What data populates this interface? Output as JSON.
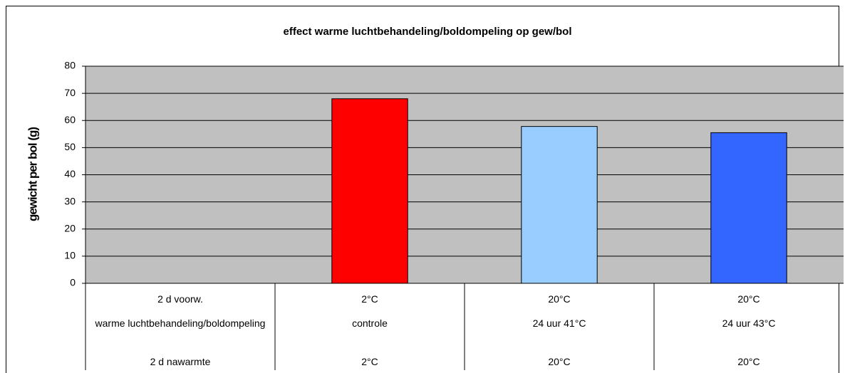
{
  "chart_data": {
    "type": "bar",
    "title": "effect warme luchtbehandeling/boldompeling op gew/bol",
    "y_label": "gewicht per bol (g)",
    "categories": [
      [
        "2 d voorw.",
        "warme luchtbehandeling/boldompeling",
        "2 d nawarmte"
      ],
      [
        "2°C",
        "controle",
        "2°C"
      ],
      [
        "20°C",
        "24 uur 41°C",
        "20°C"
      ],
      [
        "20°C",
        "24 uur 43°C",
        "20°C"
      ]
    ],
    "values": [
      null,
      68,
      57.8,
      55.5
    ],
    "colors": [
      null,
      "#ff0000",
      "#99ccff",
      "#3366ff"
    ],
    "ylim": [
      0,
      80
    ],
    "yticks": [
      0,
      10,
      20,
      30,
      40,
      50,
      60,
      70,
      80
    ],
    "grid": true
  }
}
